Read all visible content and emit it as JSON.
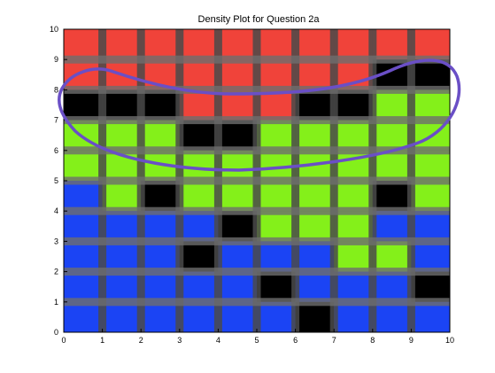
{
  "chart_data": {
    "type": "heatmap",
    "title": "Density Plot for Question 2a",
    "xlabel": "",
    "ylabel": "",
    "xlim": [
      0,
      10
    ],
    "ylim": [
      0,
      10
    ],
    "xticks": [
      "0",
      "1",
      "2",
      "3",
      "4",
      "5",
      "6",
      "7",
      "8",
      "9",
      "10"
    ],
    "yticks": [
      "0",
      "1",
      "2",
      "3",
      "4",
      "5",
      "6",
      "7",
      "8",
      "9",
      "10"
    ],
    "palette": {
      "R": "#f0433a",
      "G": "#84f01a",
      "B": "#1b44f4",
      "K": "#000000",
      "W": "#ffffff"
    },
    "rows_top_to_bottom": [
      [
        "R",
        "R",
        "R",
        "R",
        "R",
        "R",
        "R",
        "R",
        "R",
        "R"
      ],
      [
        "R",
        "R",
        "R",
        "R",
        "R",
        "R",
        "R",
        "R",
        "K",
        "K"
      ],
      [
        "K",
        "K",
        "K",
        "R",
        "R",
        "R",
        "K",
        "K",
        "G",
        "G"
      ],
      [
        "G",
        "G",
        "G",
        "K",
        "K",
        "G",
        "G",
        "G",
        "G",
        "G"
      ],
      [
        "G",
        "G",
        "G",
        "G",
        "G",
        "G",
        "G",
        "G",
        "G",
        "G"
      ],
      [
        "B",
        "G",
        "K",
        "G",
        "G",
        "G",
        "G",
        "G",
        "K",
        "G"
      ],
      [
        "B",
        "B",
        "B",
        "B",
        "K",
        "G",
        "G",
        "G",
        "B",
        "B"
      ],
      [
        "B",
        "B",
        "B",
        "K",
        "B",
        "B",
        "B",
        "G",
        "G",
        "B"
      ],
      [
        "B",
        "B",
        "B",
        "B",
        "B",
        "K",
        "B",
        "B",
        "B",
        "K"
      ],
      [
        "B",
        "B",
        "B",
        "B",
        "B",
        "B",
        "K",
        "B",
        "B",
        "B"
      ]
    ],
    "annotation": {
      "type": "freehand-ellipse",
      "color": "#6a4fc6"
    }
  }
}
